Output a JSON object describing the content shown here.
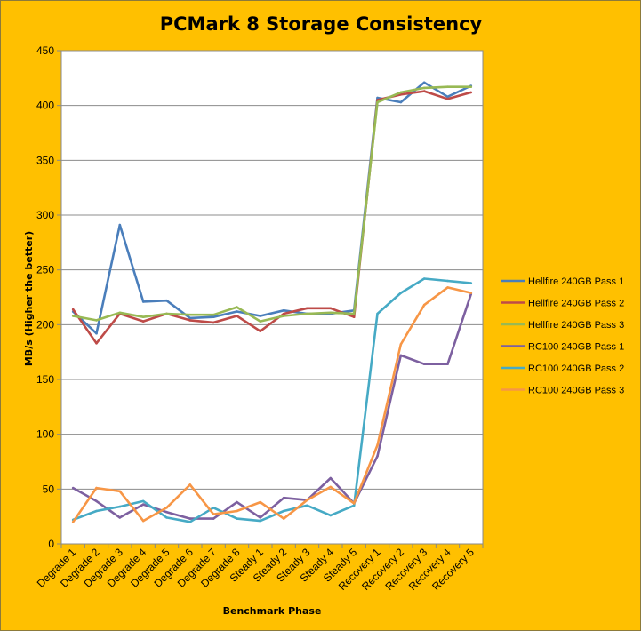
{
  "chart_data": {
    "type": "line",
    "title": "PCMark 8 Storage Consistency",
    "xlabel": "Benchmark Phase",
    "ylabel": "MB/s (Higher the better)",
    "ylim": [
      0,
      450
    ],
    "yticks": [
      0,
      50,
      100,
      150,
      200,
      250,
      300,
      350,
      400,
      450
    ],
    "grid": "horizontal",
    "legend_position": "right",
    "categories": [
      "Degrade 1",
      "Degrade 2",
      "Degrade 3",
      "Degrade 4",
      "Degrade 5",
      "Degrade 6",
      "Degrade 7",
      "Degrade 8",
      "Steady 1",
      "Steady 2",
      "Steady 3",
      "Steady 4",
      "Steady 5",
      "Recovery 1",
      "Recovery 2",
      "Recovery 3",
      "Recovery 4",
      "Recovery 5"
    ],
    "series": [
      {
        "name": "Hellfire 240GB Pass 1",
        "color": "#4a7ebb",
        "values": [
          212,
          192,
          291,
          221,
          222,
          206,
          207,
          212,
          208,
          213,
          210,
          210,
          213,
          407,
          403,
          421,
          408,
          418
        ]
      },
      {
        "name": "Hellfire 240GB Pass 2",
        "color": "#be4b48",
        "values": [
          214,
          183,
          210,
          203,
          210,
          204,
          202,
          208,
          194,
          210,
          215,
          215,
          207,
          405,
          410,
          413,
          406,
          412
        ]
      },
      {
        "name": "Hellfire 240GB Pass 3",
        "color": "#98b954",
        "values": [
          208,
          204,
          211,
          207,
          210,
          209,
          209,
          216,
          203,
          208,
          210,
          211,
          210,
          403,
          412,
          416,
          417,
          417
        ]
      },
      {
        "name": "RC100 240GB Pass 1",
        "color": "#7d60a0",
        "values": [
          51,
          39,
          24,
          36,
          29,
          23,
          23,
          38,
          24,
          42,
          40,
          60,
          37,
          80,
          172,
          164,
          164,
          228
        ]
      },
      {
        "name": "RC100 240GB Pass 2",
        "color": "#46aac5",
        "values": [
          22,
          30,
          34,
          39,
          24,
          20,
          33,
          23,
          21,
          30,
          35,
          26,
          35,
          210,
          229,
          242,
          240,
          238
        ]
      },
      {
        "name": "RC100 240GB Pass 3",
        "color": "#f79646",
        "values": [
          20,
          51,
          48,
          21,
          33,
          54,
          27,
          30,
          38,
          23,
          40,
          52,
          37,
          90,
          182,
          218,
          234,
          229
        ]
      }
    ]
  }
}
